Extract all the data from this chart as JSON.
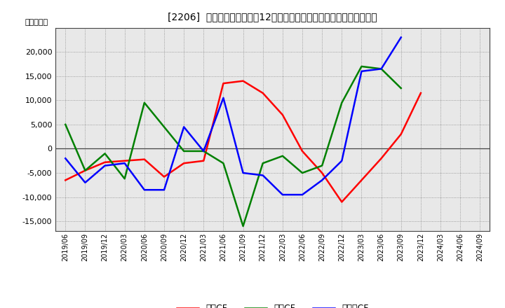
{
  "title": "[2206]  キャッシュフローの12か月移動合計の対前年同期増減額の推移",
  "ylabel": "（百万円）",
  "background_color": "#ffffff",
  "grid_color": "#aaaaaa",
  "xlabels": [
    "2019/06",
    "2019/09",
    "2019/12",
    "2020/03",
    "2020/06",
    "2020/09",
    "2020/12",
    "2021/03",
    "2021/06",
    "2021/09",
    "2021/12",
    "2022/03",
    "2022/06",
    "2022/09",
    "2022/12",
    "2023/03",
    "2023/06",
    "2023/09",
    "2023/12",
    "2024/03",
    "2024/06",
    "2024/09"
  ],
  "operating_cf": [
    -6500,
    -4500,
    -2800,
    -2500,
    -2200,
    -5800,
    -3000,
    -2500,
    13500,
    14000,
    11500,
    7000,
    -500,
    -5000,
    -11000,
    -6500,
    -2000,
    3000,
    11500,
    null,
    null,
    null
  ],
  "investing_cf": [
    5000,
    -4500,
    -1000,
    -6200,
    9500,
    4500,
    -500,
    -500,
    -3000,
    -16000,
    -3000,
    -1500,
    -5000,
    -3500,
    9500,
    17000,
    16500,
    12500,
    null,
    null,
    null,
    null
  ],
  "free_cf": [
    -2000,
    -7000,
    -3500,
    -3000,
    -8500,
    -8500,
    4500,
    -500,
    10500,
    -5000,
    -5500,
    -9500,
    -9500,
    -6500,
    -2500,
    16000,
    16500,
    23000,
    null,
    null,
    null,
    null
  ],
  "operating_color": "#ff0000",
  "investing_color": "#008000",
  "free_cf_color": "#0000ff",
  "ylim": [
    -17000,
    25000
  ],
  "yticks": [
    -15000,
    -10000,
    -5000,
    0,
    5000,
    10000,
    15000,
    20000
  ],
  "legend_labels": [
    "営業CF",
    "投資CF",
    "フリーCF"
  ]
}
